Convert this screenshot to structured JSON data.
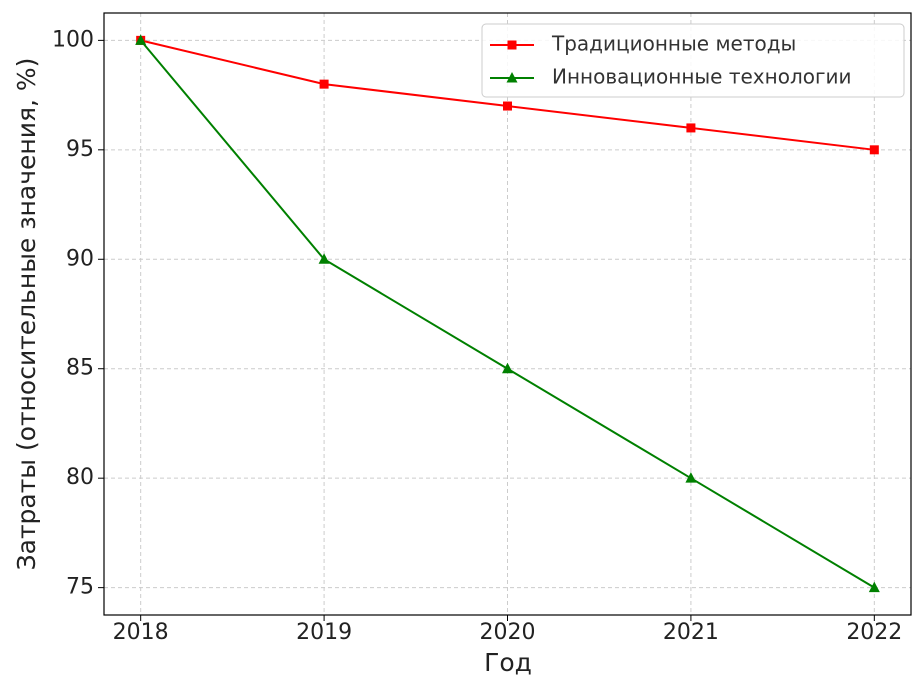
{
  "chart_data": {
    "type": "line",
    "x": [
      2018,
      2019,
      2020,
      2021,
      2022
    ],
    "series": [
      {
        "name": "Традиционные методы",
        "color": "#ff0000",
        "marker": "square",
        "values": [
          100,
          98,
          97,
          96,
          95
        ]
      },
      {
        "name": "Инновационные технологии",
        "color": "#008000",
        "marker": "triangle",
        "values": [
          100,
          90,
          85,
          80,
          75
        ]
      }
    ],
    "xlabel": "Год",
    "ylabel": "Затраты (относительные значения, %)",
    "xlim": [
      2017.8,
      2022.2
    ],
    "xticks": [
      2018,
      2019,
      2020,
      2021,
      2022
    ],
    "ylim": [
      73.75,
      101.25
    ],
    "yticks": [
      75,
      80,
      85,
      90,
      95,
      100
    ],
    "grid": true,
    "legend": "upper right"
  }
}
